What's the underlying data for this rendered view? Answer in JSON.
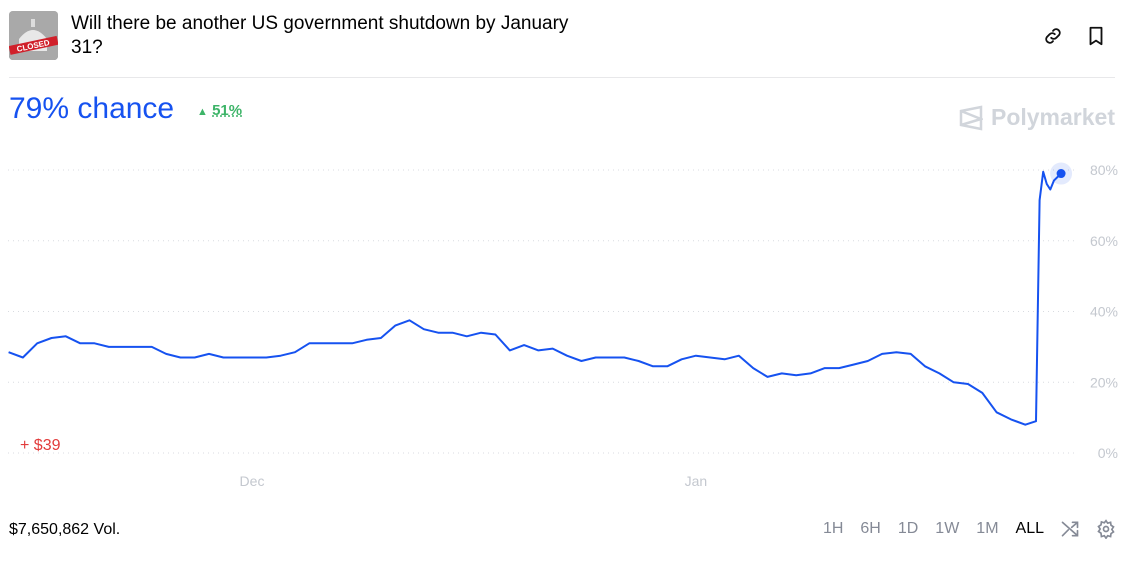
{
  "header": {
    "title": "Will there be another US government shutdown by January 31?",
    "thumb_text": "CLOSED",
    "link_icon": "link-icon",
    "bookmark_icon": "bookmark-icon"
  },
  "summary": {
    "chance": "79% chance",
    "delta": "51%",
    "delta_color": "#3db468",
    "accent": "#1652f0"
  },
  "brand": "Polymarket",
  "pnl": "+ $39",
  "volume": "$7,650,862 Vol.",
  "ranges": [
    {
      "label": "1H"
    },
    {
      "label": "6H"
    },
    {
      "label": "1D"
    },
    {
      "label": "1W"
    },
    {
      "label": "1M"
    },
    {
      "label": "ALL",
      "active": true
    }
  ],
  "chart_data": {
    "type": "line",
    "ylim": [
      0,
      80
    ],
    "yticks": [
      "0%",
      "20%",
      "40%",
      "60%",
      "80%"
    ],
    "ytick_values": [
      0,
      20,
      40,
      60,
      80
    ],
    "xticks": [
      {
        "label": "Dec",
        "date": "2024-12-01"
      },
      {
        "label": "Jan",
        "date": "2025-01-01"
      }
    ],
    "grid": "horizontal dotted",
    "line_color": "#1652f0",
    "series": [
      {
        "points": [
          [
            "2024-11-14",
            28.5
          ],
          [
            "2024-11-15",
            27
          ],
          [
            "2024-11-16",
            31
          ],
          [
            "2024-11-17",
            32.5
          ],
          [
            "2024-11-18",
            33
          ],
          [
            "2024-11-19",
            31
          ],
          [
            "2024-11-20",
            31
          ],
          [
            "2024-11-21",
            30
          ],
          [
            "2024-11-22",
            30
          ],
          [
            "2024-11-23",
            30
          ],
          [
            "2024-11-24",
            30
          ],
          [
            "2024-11-25",
            28
          ],
          [
            "2024-11-26",
            27
          ],
          [
            "2024-11-27",
            27
          ],
          [
            "2024-11-28",
            28
          ],
          [
            "2024-11-29",
            27
          ],
          [
            "2024-11-30",
            27
          ],
          [
            "2024-12-01",
            27
          ],
          [
            "2024-12-02",
            27
          ],
          [
            "2024-12-03",
            27.5
          ],
          [
            "2024-12-04",
            28.5
          ],
          [
            "2024-12-05",
            31
          ],
          [
            "2024-12-06",
            31
          ],
          [
            "2024-12-07",
            31
          ],
          [
            "2024-12-08",
            31
          ],
          [
            "2024-12-09",
            32
          ],
          [
            "2024-12-10",
            32.5
          ],
          [
            "2024-12-11",
            36
          ],
          [
            "2024-12-12",
            37.5
          ],
          [
            "2024-12-13",
            35
          ],
          [
            "2024-12-14",
            34
          ],
          [
            "2024-12-15",
            34
          ],
          [
            "2024-12-16",
            33
          ],
          [
            "2024-12-17",
            34
          ],
          [
            "2024-12-18",
            33.5
          ],
          [
            "2024-12-19",
            29
          ],
          [
            "2024-12-20",
            30.5
          ],
          [
            "2024-12-21",
            29
          ],
          [
            "2024-12-22",
            29.5
          ],
          [
            "2024-12-23",
            27.5
          ],
          [
            "2024-12-24",
            26
          ],
          [
            "2024-12-25",
            27
          ],
          [
            "2024-12-26",
            27
          ],
          [
            "2024-12-27",
            27
          ],
          [
            "2024-12-28",
            26
          ],
          [
            "2024-12-29",
            24.5
          ],
          [
            "2024-12-30",
            24.5
          ],
          [
            "2024-12-31",
            26.5
          ],
          [
            "2025-01-01",
            27.5
          ],
          [
            "2025-01-02",
            27
          ],
          [
            "2025-01-03",
            26.5
          ],
          [
            "2025-01-04",
            27.5
          ],
          [
            "2025-01-05",
            24
          ],
          [
            "2025-01-06",
            21.5
          ],
          [
            "2025-01-07",
            22.5
          ],
          [
            "2025-01-08",
            22
          ],
          [
            "2025-01-09",
            22.5
          ],
          [
            "2025-01-10",
            24
          ],
          [
            "2025-01-11",
            24
          ],
          [
            "2025-01-12",
            25
          ],
          [
            "2025-01-13",
            26
          ],
          [
            "2025-01-14",
            28
          ],
          [
            "2025-01-15",
            28.5
          ],
          [
            "2025-01-16",
            28
          ],
          [
            "2025-01-17",
            24.5
          ],
          [
            "2025-01-18",
            22.5
          ],
          [
            "2025-01-19",
            20
          ],
          [
            "2025-01-20",
            19.5
          ],
          [
            "2025-01-21",
            17
          ],
          [
            "2025-01-22",
            11.5
          ],
          [
            "2025-01-23",
            9.5
          ],
          [
            "2025-01-24",
            8
          ],
          [
            "2025-01-24T18:00",
            9
          ],
          [
            "2025-01-25T00:00",
            71.5
          ],
          [
            "2025-01-25T06:00",
            79.5
          ],
          [
            "2025-01-25T12:00",
            76
          ],
          [
            "2025-01-25T18:00",
            74.5
          ],
          [
            "2025-01-26T00:00",
            77
          ],
          [
            "2025-01-26T12:00",
            79
          ]
        ]
      }
    ]
  }
}
